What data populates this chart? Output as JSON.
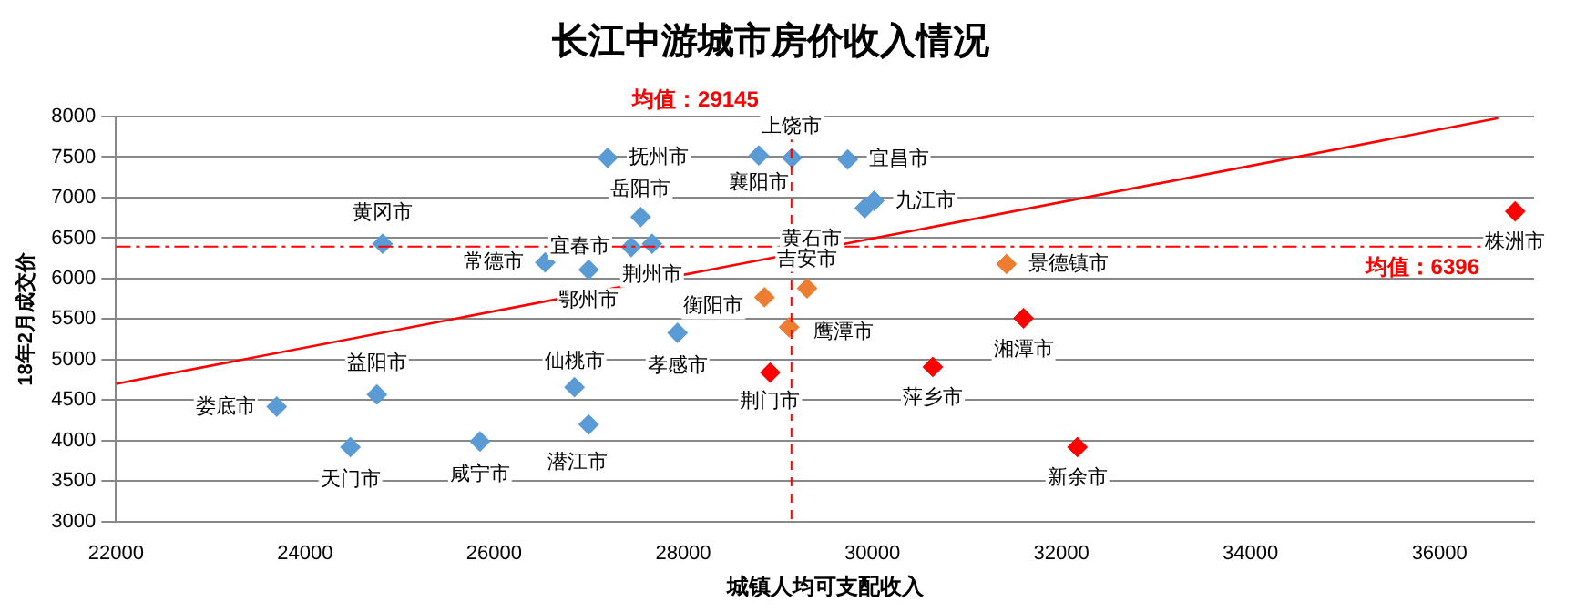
{
  "chart_data": {
    "type": "scatter",
    "title": "长江中游城市房价收入情况",
    "xlabel": "城镇人均可支配收入",
    "ylabel": "18年2月成交价",
    "xlim": [
      22000,
      37000
    ],
    "xticks": [
      22000,
      24000,
      26000,
      28000,
      30000,
      32000,
      34000,
      36000
    ],
    "ylim": [
      3000,
      8000
    ],
    "yticks": [
      3000,
      3500,
      4000,
      4500,
      5000,
      5500,
      6000,
      6500,
      7000,
      7500,
      8000
    ],
    "grid": "y",
    "legend": false,
    "marker": "diamond",
    "series": [
      {
        "type": "scatter",
        "color": "#5b9bd5",
        "x": [
          23700,
          24480,
          24760,
          24820,
          25850,
          26540,
          27000,
          26850,
          27000,
          27200,
          27550,
          27450,
          27670,
          27940,
          28800,
          29150,
          29740,
          30020,
          29920
        ],
        "values": [
          4420,
          3920,
          4570,
          6430,
          3990,
          6200,
          6110,
          4660,
          4200,
          7490,
          6760,
          6390,
          6430,
          5330,
          7520,
          7490,
          7470,
          6960,
          6870
        ]
      },
      {
        "type": "scatter",
        "color": "#ed7d31",
        "x": [
          28860,
          29310,
          29120,
          31420
        ],
        "values": [
          5770,
          5880,
          5400,
          6180
        ]
      },
      {
        "type": "scatter",
        "color": "#ff0000",
        "x": [
          28920,
          30640,
          31600,
          32170,
          36800
        ],
        "values": [
          4840,
          4910,
          5510,
          3920,
          6830
        ]
      },
      {
        "type": "line",
        "color": "#ff0000",
        "marker": "none",
        "x": [
          22000,
          36620
        ],
        "values": [
          4700,
          7980
        ]
      }
    ],
    "ref_lines": [
      {
        "axis": "x",
        "value": 29145,
        "label": "均值：29145",
        "color": "#ff0000",
        "line_style": "dashed"
      },
      {
        "axis": "y",
        "value": 6396,
        "label": "均值：6396",
        "color": "#ff0000",
        "line_style": "dashdot"
      }
    ],
    "annotations": [
      {
        "text": "娄底市",
        "x": 23700,
        "y": 4420
      },
      {
        "text": "天门市",
        "x": 24480,
        "y": 3920
      },
      {
        "text": "益阳市",
        "x": 24760,
        "y": 4570
      },
      {
        "text": "黄冈市",
        "x": 24820,
        "y": 6430
      },
      {
        "text": "咸宁市",
        "x": 25850,
        "y": 3990
      },
      {
        "text": "常德市",
        "x": 26540,
        "y": 6200
      },
      {
        "text": "鄂州市",
        "x": 27000,
        "y": 6110
      },
      {
        "text": "仙桃市",
        "x": 26850,
        "y": 4660
      },
      {
        "text": "潜江市",
        "x": 27000,
        "y": 4200
      },
      {
        "text": "抚州市",
        "x": 27200,
        "y": 7490
      },
      {
        "text": "岳阳市",
        "x": 27550,
        "y": 6760
      },
      {
        "text": "宜春市",
        "x": 27450,
        "y": 6390
      },
      {
        "text": "荆州市",
        "x": 27670,
        "y": 6430
      },
      {
        "text": "孝感市",
        "x": 27940,
        "y": 5330
      },
      {
        "text": "襄阳市",
        "x": 28800,
        "y": 7520
      },
      {
        "text": "上饶市",
        "x": 29150,
        "y": 7490
      },
      {
        "text": "宜昌市",
        "x": 29740,
        "y": 7470
      },
      {
        "text": "九江市",
        "x": 30020,
        "y": 6960
      },
      {
        "text": "黄石市",
        "x": 29920,
        "y": 6870
      },
      {
        "text": "衡阳市",
        "x": 28860,
        "y": 5770
      },
      {
        "text": "吉安市",
        "x": 29310,
        "y": 5880
      },
      {
        "text": "鹰潭市",
        "x": 29120,
        "y": 5400
      },
      {
        "text": "景德镇市",
        "x": 31420,
        "y": 6180
      },
      {
        "text": "荆门市",
        "x": 28920,
        "y": 4840
      },
      {
        "text": "萍乡市",
        "x": 30640,
        "y": 4910
      },
      {
        "text": "湘潭市",
        "x": 31600,
        "y": 5510
      },
      {
        "text": "新余市",
        "x": 32170,
        "y": 3920
      },
      {
        "text": "株洲市",
        "x": 36800,
        "y": 6830
      }
    ]
  }
}
